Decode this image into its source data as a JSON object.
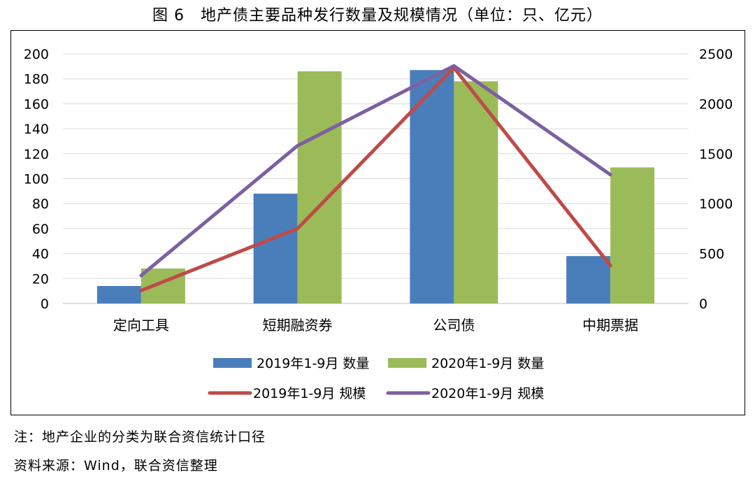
{
  "title": "图 6　地产债主要品种发行数量及规模情况（单位：只、亿元）",
  "note": "注：地产企业的分类为联合资信统计口径",
  "source": "资料来源：Wind，联合资信整理",
  "chart_data": {
    "type": "bar",
    "categories": [
      "定向工具",
      "短期融资券",
      "公司债",
      "中期票据"
    ],
    "series": [
      {
        "name": "2019年1-9月 数量",
        "kind": "bar",
        "axis": "left",
        "color": "#4a7ebb",
        "values": [
          14,
          88,
          187,
          38
        ]
      },
      {
        "name": "2020年1-9月 数量",
        "kind": "bar",
        "axis": "left",
        "color": "#9bbb59",
        "values": [
          28,
          186,
          178,
          109
        ]
      },
      {
        "name": "2019年1-9月 规模",
        "kind": "line",
        "axis": "right",
        "color": "#be4b48",
        "values": [
          130,
          750,
          2360,
          380
        ]
      },
      {
        "name": "2020年1-9月 规模",
        "kind": "line",
        "axis": "right",
        "color": "#7d60a0",
        "values": [
          280,
          1580,
          2380,
          1290
        ]
      }
    ],
    "y_left": {
      "min": 0,
      "max": 200,
      "step": 20
    },
    "y_right": {
      "min": 0,
      "max": 2500,
      "step": 500
    },
    "grid": true,
    "legend": "bottom"
  }
}
